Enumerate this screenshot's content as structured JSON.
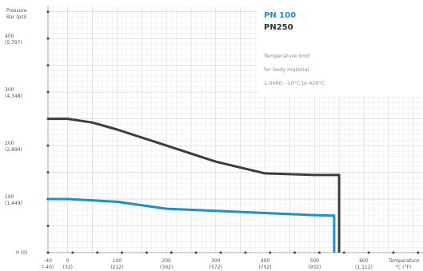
{
  "chart_data": {
    "type": "line",
    "x": [
      -40,
      0,
      100,
      200,
      300,
      400,
      500,
      600
    ],
    "xlim": [
      -40,
      720
    ],
    "ylim": [
      0,
      460
    ],
    "y_ticks": [
      0,
      100,
      200,
      300,
      400
    ],
    "y_tick_labels": [
      {
        "main": "0 (0)",
        "sub": ""
      },
      {
        "main": "100",
        "sub": "(1,449)"
      },
      {
        "main": "200",
        "sub": "(2,899)"
      },
      {
        "main": "300",
        "sub": "(4,348)"
      },
      {
        "main": "400",
        "sub": "(5,797)"
      }
    ],
    "x_tick_labels": [
      {
        "main": "-40",
        "sub": "(-40)"
      },
      {
        "main": "0",
        "sub": "(32)"
      },
      {
        "main": "100",
        "sub": "(212)"
      },
      {
        "main": "200",
        "sub": "(392)"
      },
      {
        "main": "300",
        "sub": "(572)"
      },
      {
        "main": "400",
        "sub": "(752)"
      },
      {
        "main": "500",
        "sub": "(932)"
      },
      {
        "main": "600",
        "sub": "(1,112)"
      }
    ],
    "y_title": [
      "Pressure",
      "Bar (psi)"
    ],
    "x_title": [
      "Temperature",
      "°C (°F)"
    ],
    "grid": true,
    "series": [
      {
        "name": "PN250",
        "color": "#3d3d3d",
        "points": [
          [
            -40,
            250
          ],
          [
            0,
            250
          ],
          [
            50,
            243
          ],
          [
            100,
            230
          ],
          [
            200,
            200
          ],
          [
            300,
            170
          ],
          [
            400,
            148
          ],
          [
            500,
            145
          ],
          [
            550,
            145
          ],
          [
            550,
            0
          ]
        ]
      },
      {
        "name": "PN 100",
        "color": "#1a8fd1",
        "points": [
          [
            -40,
            100
          ],
          [
            0,
            100
          ],
          [
            100,
            95
          ],
          [
            200,
            82
          ],
          [
            300,
            78
          ],
          [
            400,
            74
          ],
          [
            500,
            70
          ],
          [
            540,
            69
          ],
          [
            540,
            0
          ]
        ]
      }
    ],
    "legend": {
      "position": "top-right",
      "items": [
        "PN 100",
        "PN250"
      ]
    },
    "annotation": [
      "Temperature limit",
      "for body material",
      "1.0460: -10°C to 420°C"
    ]
  }
}
